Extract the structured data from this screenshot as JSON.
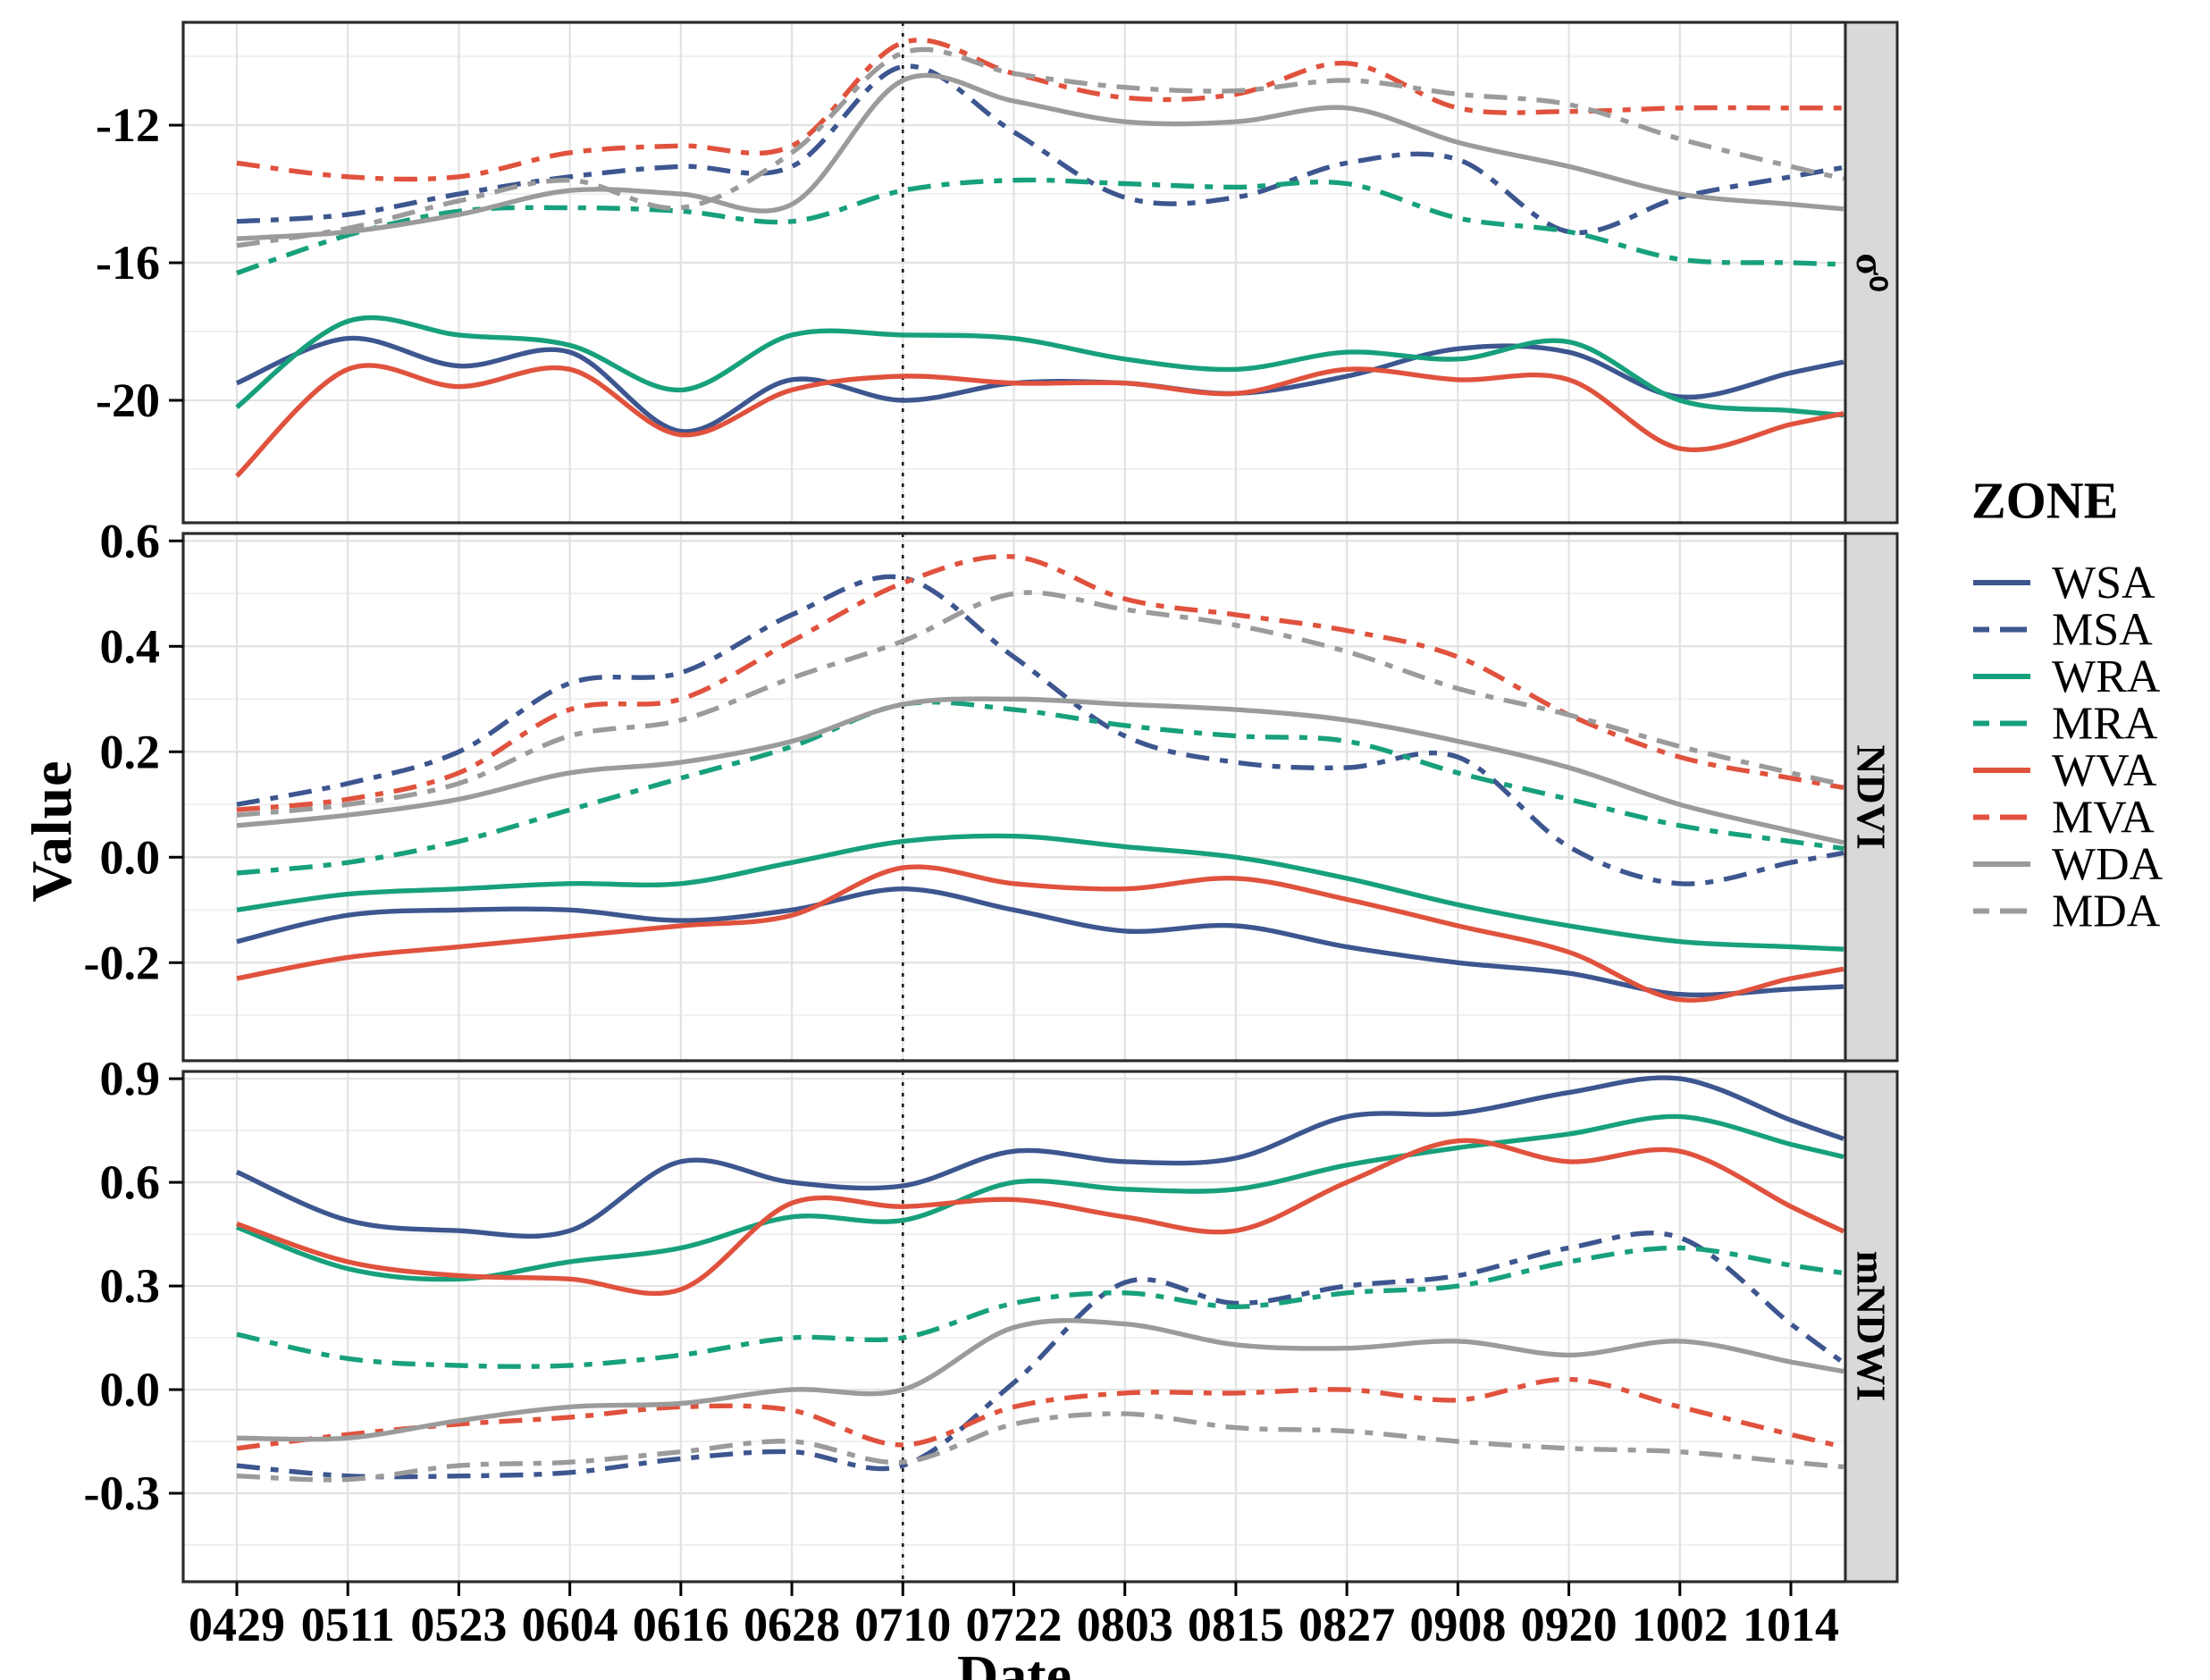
{
  "axes": {
    "x_title": "Date",
    "y_title": "Value"
  },
  "legend": {
    "title": "ZONE",
    "entries": [
      {
        "label": "WSA",
        "color": "#3D568F",
        "linetype": "solid"
      },
      {
        "label": "MSA",
        "color": "#3D568F",
        "linetype": "twodash"
      },
      {
        "label": "WRA",
        "color": "#17A07C",
        "linetype": "solid"
      },
      {
        "label": "MRA",
        "color": "#17A07C",
        "linetype": "twodash"
      },
      {
        "label": "WVA",
        "color": "#E0523D",
        "linetype": "solid"
      },
      {
        "label": "MVA",
        "color": "#E0523D",
        "linetype": "twodash"
      },
      {
        "label": "WDA",
        "color": "#9B9B9B",
        "linetype": "solid"
      },
      {
        "label": "MDA",
        "color": "#9B9B9B",
        "linetype": "twodash"
      }
    ]
  },
  "colors": {
    "panel_border": "#2B2B2B",
    "strip_fill": "#D9D9D9",
    "grid_major": "#E2E2E2",
    "grid_minor": "#F0F0F0",
    "tick": "#000000",
    "reference_line": "#1A1A1A"
  },
  "chart_data": {
    "type": "line",
    "xlabel": "Date",
    "ylabel": "Value",
    "legend_position": "right",
    "grid": "on",
    "reference_line_x": "0710",
    "categories": [
      "0429",
      "0511",
      "0523",
      "0604",
      "0616",
      "0628",
      "0710",
      "0722",
      "0803",
      "0815",
      "0827",
      "0908",
      "0920",
      "1002",
      "1014"
    ],
    "facets": [
      {
        "label": "σ⁰",
        "ylim": [
          -23.56,
          -9.01
        ],
        "ytick_values": [
          -12,
          -16,
          -20
        ],
        "ytick_labels": [
          "-12",
          "-16",
          "-20"
        ],
        "minor_tick_values": [
          -10,
          -14,
          -18,
          -22
        ],
        "series": [
          {
            "name": "WSA",
            "values": [
              -19.5,
              -18.2,
              -19.0,
              -18.6,
              -20.9,
              -19.4,
              -20.0,
              -19.5,
              -19.5,
              -19.8,
              -19.3,
              -18.5,
              -18.6,
              -19.9,
              -19.2
            ]
          },
          {
            "name": "MSA",
            "values": [
              -14.8,
              -14.6,
              -14.0,
              -13.5,
              -13.2,
              -13.2,
              -10.3,
              -12.2,
              -14.1,
              -14.1,
              -13.1,
              -13.0,
              -15.1,
              -14.1,
              -13.5
            ]
          },
          {
            "name": "WRA",
            "values": [
              -20.2,
              -17.7,
              -18.1,
              -18.4,
              -19.7,
              -18.1,
              -18.1,
              -18.2,
              -18.8,
              -19.1,
              -18.6,
              -18.8,
              -18.3,
              -20.0,
              -20.3
            ]
          },
          {
            "name": "MRA",
            "values": [
              -16.3,
              -15.2,
              -14.5,
              -14.4,
              -14.5,
              -14.8,
              -13.9,
              -13.6,
              -13.7,
              -13.8,
              -13.7,
              -14.7,
              -15.1,
              -15.9,
              -16.0
            ]
          },
          {
            "name": "WVA",
            "values": [
              -22.2,
              -19.1,
              -19.6,
              -19.1,
              -21.0,
              -19.7,
              -19.3,
              -19.5,
              -19.5,
              -19.8,
              -19.1,
              -19.4,
              -19.4,
              -21.4,
              -20.7
            ]
          },
          {
            "name": "MVA",
            "values": [
              -13.1,
              -13.5,
              -13.5,
              -12.8,
              -12.6,
              -12.6,
              -9.6,
              -10.5,
              -11.2,
              -11.1,
              -10.2,
              -11.5,
              -11.6,
              -11.5,
              -11.5
            ]
          },
          {
            "name": "WDA",
            "values": [
              -15.3,
              -15.1,
              -14.6,
              -13.9,
              -14.0,
              -14.3,
              -10.7,
              -11.3,
              -11.9,
              -11.9,
              -11.5,
              -12.5,
              -13.2,
              -14.0,
              -14.3
            ]
          },
          {
            "name": "MDA",
            "values": [
              -15.5,
              -15.0,
              -14.2,
              -13.6,
              -14.4,
              -12.8,
              -9.9,
              -10.5,
              -10.9,
              -11.0,
              -10.7,
              -11.1,
              -11.4,
              -12.4,
              -13.2
            ]
          }
        ]
      },
      {
        "label": "NDVI",
        "ylim": [
          -0.386,
          0.614
        ],
        "ytick_values": [
          0.6,
          0.4,
          0.2,
          0.0,
          -0.2
        ],
        "ytick_labels": [
          "0.6",
          "0.4",
          "0.2",
          "0.0",
          "-0.2"
        ],
        "minor_tick_values": [
          0.5,
          0.3,
          0.1,
          -0.1,
          -0.3
        ],
        "series": [
          {
            "name": "WSA",
            "values": [
              -0.16,
              -0.11,
              -0.1,
              -0.1,
              -0.12,
              -0.1,
              -0.06,
              -0.1,
              -0.14,
              -0.13,
              -0.17,
              -0.2,
              -0.22,
              -0.26,
              -0.25
            ]
          },
          {
            "name": "MSA",
            "values": [
              0.1,
              0.14,
              0.2,
              0.33,
              0.35,
              0.46,
              0.53,
              0.38,
              0.23,
              0.18,
              0.17,
              0.19,
              0.02,
              -0.05,
              -0.01
            ]
          },
          {
            "name": "WRA",
            "values": [
              -0.1,
              -0.07,
              -0.06,
              -0.05,
              -0.05,
              -0.01,
              0.03,
              0.04,
              0.02,
              0.0,
              -0.04,
              -0.09,
              -0.13,
              -0.16,
              -0.17
            ]
          },
          {
            "name": "MRA",
            "values": [
              -0.03,
              -0.01,
              0.03,
              0.09,
              0.15,
              0.21,
              0.29,
              0.28,
              0.25,
              0.23,
              0.22,
              0.16,
              0.11,
              0.06,
              0.03
            ]
          },
          {
            "name": "WVA",
            "values": [
              -0.23,
              -0.19,
              -0.17,
              -0.15,
              -0.13,
              -0.11,
              -0.02,
              -0.05,
              -0.06,
              -0.04,
              -0.08,
              -0.13,
              -0.18,
              -0.27,
              -0.23
            ]
          },
          {
            "name": "MVA",
            "values": [
              0.09,
              0.11,
              0.16,
              0.28,
              0.3,
              0.41,
              0.52,
              0.57,
              0.49,
              0.46,
              0.43,
              0.38,
              0.27,
              0.19,
              0.15
            ]
          },
          {
            "name": "WDA",
            "values": [
              0.06,
              0.08,
              0.11,
              0.16,
              0.18,
              0.22,
              0.29,
              0.3,
              0.29,
              0.28,
              0.26,
              0.22,
              0.17,
              0.1,
              0.05
            ]
          },
          {
            "name": "MDA",
            "values": [
              0.08,
              0.1,
              0.14,
              0.23,
              0.26,
              0.34,
              0.41,
              0.5,
              0.47,
              0.44,
              0.39,
              0.32,
              0.27,
              0.21,
              0.16
            ]
          }
        ]
      },
      {
        "label": "mNDWI",
        "ylim": [
          -0.556,
          0.921
        ],
        "ytick_values": [
          0.9,
          0.6,
          0.3,
          0.0,
          -0.3
        ],
        "ytick_labels": [
          "0.9",
          "0.6",
          "0.3",
          "0.0",
          "-0.3"
        ],
        "minor_tick_values": [
          0.75,
          0.45,
          0.15,
          -0.15,
          -0.45
        ],
        "series": [
          {
            "name": "WSA",
            "values": [
              0.63,
              0.49,
              0.46,
              0.46,
              0.66,
              0.6,
              0.59,
              0.69,
              0.66,
              0.67,
              0.79,
              0.8,
              0.86,
              0.9,
              0.78
            ]
          },
          {
            "name": "MSA",
            "values": [
              -0.22,
              -0.25,
              -0.25,
              -0.24,
              -0.2,
              -0.18,
              -0.22,
              0.02,
              0.31,
              0.25,
              0.3,
              0.33,
              0.41,
              0.44,
              0.19
            ]
          },
          {
            "name": "WRA",
            "values": [
              0.47,
              0.35,
              0.32,
              0.37,
              0.41,
              0.5,
              0.49,
              0.6,
              0.58,
              0.58,
              0.65,
              0.7,
              0.74,
              0.79,
              0.71
            ]
          },
          {
            "name": "MRA",
            "values": [
              0.16,
              0.09,
              0.07,
              0.07,
              0.1,
              0.15,
              0.15,
              0.25,
              0.28,
              0.24,
              0.28,
              0.3,
              0.37,
              0.41,
              0.36
            ]
          },
          {
            "name": "WVA",
            "values": [
              0.48,
              0.37,
              0.33,
              0.32,
              0.29,
              0.54,
              0.53,
              0.55,
              0.5,
              0.46,
              0.6,
              0.72,
              0.66,
              0.69,
              0.53
            ]
          },
          {
            "name": "MVA",
            "values": [
              -0.17,
              -0.13,
              -0.1,
              -0.08,
              -0.05,
              -0.06,
              -0.16,
              -0.05,
              -0.01,
              -0.01,
              0.0,
              -0.03,
              0.03,
              -0.05,
              -0.13
            ]
          },
          {
            "name": "WDA",
            "values": [
              -0.14,
              -0.14,
              -0.09,
              -0.05,
              -0.04,
              0.0,
              0.0,
              0.18,
              0.19,
              0.13,
              0.12,
              0.14,
              0.1,
              0.14,
              0.08
            ]
          },
          {
            "name": "MDA",
            "values": [
              -0.25,
              -0.26,
              -0.22,
              -0.21,
              -0.18,
              -0.15,
              -0.21,
              -0.1,
              -0.07,
              -0.11,
              -0.12,
              -0.15,
              -0.17,
              -0.18,
              -0.21
            ]
          }
        ]
      }
    ]
  }
}
